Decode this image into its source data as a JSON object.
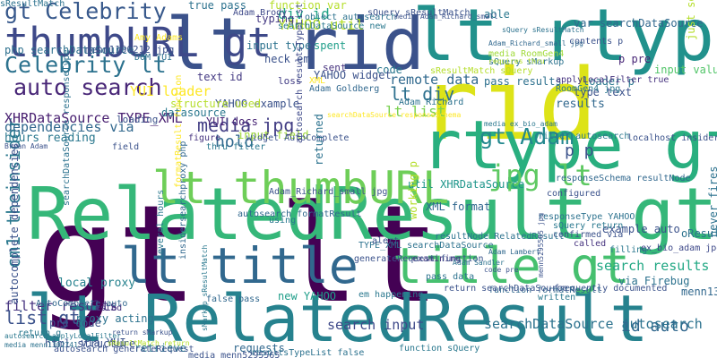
{
  "words": [
    {
      "text": "gt lt",
      "color": "#440154"
    },
    {
      "text": "lt RelatedResult",
      "color": "#26828e"
    },
    {
      "text": "RelatedResult gt",
      "color": "#35b779"
    },
    {
      "text": "rid",
      "color": "#dde318"
    },
    {
      "text": "lt rid",
      "color": "#3b528b"
    },
    {
      "text": "lt rtype",
      "color": "#21918c"
    },
    {
      "text": "rtype gt",
      "color": "#29af7f"
    },
    {
      "text": "lt title",
      "color": "#31688e"
    },
    {
      "text": "title gt",
      "color": "#46c06f"
    },
    {
      "text": "lt thumbURL",
      "color": "#6ece58"
    },
    {
      "text": "thumbURL gt",
      "color": "#3e4989"
    },
    {
      "text": "gt Celebrity",
      "color": "#38598c"
    },
    {
      "text": "Celebrity lt",
      "color": "#2c728e"
    },
    {
      "text": "auto search",
      "color": "#482677"
    },
    {
      "text": "cm1 theinsider",
      "color": "#2a788e"
    },
    {
      "text": "jpg lt",
      "color": "#5ec962"
    },
    {
      "text": "gt Adam",
      "color": "#23888e"
    },
    {
      "text": "media jpg",
      "color": "#433e85"
    },
    {
      "text": "lt div",
      "color": "#2d708e"
    },
    {
      "text": "lt list",
      "color": "#7ad151"
    },
    {
      "text": "remote data",
      "color": "#30698e"
    },
    {
      "text": "p p",
      "color": "#3b528b"
    },
    {
      "text": "div id",
      "color": "#20a386"
    },
    {
      "text": "YAHOO util",
      "color": "#b5de2b"
    },
    {
      "text": "util XHRDataSource",
      "color": "#1f968b"
    },
    {
      "text": "code",
      "color": "#2a788e"
    },
    {
      "text": "hold",
      "color": "#31688e"
    },
    {
      "text": "new YAHOO",
      "color": "#1f9e89"
    },
    {
      "text": "search input",
      "color": "#3e4989"
    },
    {
      "text": "search results",
      "color": "#22a884"
    },
    {
      "text": "id auto",
      "color": "#31688e"
    },
    {
      "text": "searchDataSource autosearch",
      "color": "#2c728e"
    },
    {
      "text": "list gt",
      "color": "#3b528b"
    },
    {
      "text": "filter results",
      "color": "#46337f"
    },
    {
      "text": "local proxy",
      "color": "#26828e"
    },
    {
      "text": "via Firebug",
      "color": "#2c728e"
    },
    {
      "text": "example auto",
      "color": "#3b528b"
    },
    {
      "text": "YUI loader",
      "color": "#fde725"
    },
    {
      "text": "XHRDataSource TYPE_XML",
      "color": "#481f70"
    },
    {
      "text": "hours reading",
      "color": "#2a788e"
    },
    {
      "text": "dependencies via",
      "color": "#31688e"
    },
    {
      "text": "php searchDataSource",
      "color": "#2d708e"
    },
    {
      "text": "YAHOO example",
      "color": "#3b528b"
    },
    {
      "text": "YUI docs",
      "color": "#482475"
    },
    {
      "text": "input field",
      "color": "#a0da39"
    },
    {
      "text": "datasource",
      "color": "#2a788e"
    },
    {
      "text": "structure used",
      "color": "#b5de2b"
    },
    {
      "text": "loading",
      "color": "#3b528b"
    },
    {
      "text": "text id",
      "color": "#443a83"
    },
    {
      "text": "input type",
      "color": "#2c728e"
    },
    {
      "text": "heck em",
      "color": "#3b528b"
    },
    {
      "text": "sent",
      "color": "#46327e"
    },
    {
      "text": "spent",
      "color": "#1f9e89"
    },
    {
      "text": "loss",
      "color": "#433e85"
    },
    {
      "text": "pass results",
      "color": "#2d708e"
    },
    {
      "text": "results",
      "color": "#31688e"
    },
    {
      "text": "type text",
      "color": "#3b528b"
    },
    {
      "text": "loader p",
      "color": "#2a788e"
    },
    {
      "text": "p pre",
      "color": "#482677"
    },
    {
      "text": "input value",
      "color": "#52c569"
    },
    {
      "text": "true pass",
      "color": "#2c728e"
    },
    {
      "text": "function var",
      "color": "#b5de2b"
    },
    {
      "text": "typing",
      "color": "#443983"
    },
    {
      "text": "able",
      "color": "#2a788e"
    },
    {
      "text": "var searchDataSource",
      "color": "#31688e"
    },
    {
      "text": "contents p",
      "color": "#3b528b"
    },
    {
      "text": "media RoomGen4",
      "color": "#a0da39"
    },
    {
      "text": "sQuery sMarkup",
      "color": "#2c728e"
    },
    {
      "text": "applyLocalFilter true",
      "color": "#46337f"
    },
    {
      "text": "RoomGen4 jpg",
      "color": "#2a788e"
    },
    {
      "text": "menn1190212 jpg",
      "color": "#3b528b"
    },
    {
      "text": "DOM YUI",
      "color": "#2d708e"
    },
    {
      "text": "Adam Brody",
      "color": "#3e4989"
    },
    {
      "text": "object autosearch",
      "color": "#2c728e"
    },
    {
      "text": "Amy Adams",
      "color": "#fde725"
    },
    {
      "text": "sQuery sResultMatch",
      "color": "#3b528b"
    },
    {
      "text": "searchDataSource new",
      "color": "#2a788e"
    },
    {
      "text": "sResultMatch sQuery",
      "color": "#b5de2b"
    },
    {
      "text": "YAHOO widget",
      "color": "#3b528b"
    },
    {
      "text": "XML",
      "color": "#fde725"
    },
    {
      "text": "Adam Goldberg",
      "color": "#31688e"
    },
    {
      "text": "Adam Richard",
      "color": "#2c728e"
    },
    {
      "text": "figure",
      "color": "#46337f"
    },
    {
      "text": "widget AutoComplete",
      "color": "#3b528b"
    },
    {
      "text": "thru filter",
      "color": "#2a788e"
    },
    {
      "text": "formatResult function",
      "color": "#fde725"
    },
    {
      "text": "field",
      "color": "#3b528b"
    },
    {
      "text": "returned",
      "color": "#2c728e"
    },
    {
      "text": "just several",
      "color": "#b5de2b"
    },
    {
      "text": "localhost insidersearchproxy",
      "color": "#3b528b"
    },
    {
      "text": "filter autosearch",
      "color": "#2a788e"
    },
    {
      "text": "responseSchema resultNode",
      "color": "#31688e"
    },
    {
      "text": "responseType YAHOO",
      "color": "#2c728e"
    },
    {
      "text": "confirmed via",
      "color": "#3b528b"
    },
    {
      "text": "sQuery return",
      "color": "#2a788e"
    },
    {
      "text": "called",
      "color": "#46337f"
    },
    {
      "text": "configured",
      "color": "#3b528b"
    },
    {
      "text": "oResultData sQuery",
      "color": "#2c728e"
    },
    {
      "text": "filling",
      "color": "#2a788e"
    },
    {
      "text": "ex_bio_adam jpg",
      "color": "#3e4989"
    },
    {
      "text": "menn1302761 jpg",
      "color": "#31688e"
    },
    {
      "text": "never fires",
      "color": "#2c728e"
    },
    {
      "text": "frequently documented",
      "color": "#3b528b"
    },
    {
      "text": "written",
      "color": "#2a788e"
    },
    {
      "text": "function formatResult",
      "color": "#31688e"
    },
    {
      "text": "return searchDataSource",
      "color": "#3b528b"
    },
    {
      "text": "pass data",
      "color": "#2c728e"
    },
    {
      "text": "examining",
      "color": "#46337f"
    },
    {
      "text": "em happening",
      "color": "#2a788e"
    },
    {
      "text": "generateRequest function",
      "color": "#3b528b"
    },
    {
      "text": "XML format",
      "color": "#31688e"
    },
    {
      "text": "working p",
      "color": "#b5de2b"
    },
    {
      "text": "TYPE_XML searchDataSource",
      "color": "#2c728e"
    },
    {
      "text": "alert",
      "color": "#3b528b"
    },
    {
      "text": "using",
      "color": "#2a788e"
    },
    {
      "text": "autosearch formatResult",
      "color": "#31688e"
    },
    {
      "text": "Adam_Richard_small jpg",
      "color": "#3b528b"
    },
    {
      "text": "resultNode RelatedResult",
      "color": "#2c728e"
    },
    {
      "text": "autosearch resultsTypeList",
      "color": "#3e4989"
    },
    {
      "text": "several hours",
      "color": "#2a788e"
    },
    {
      "text": "insidersearchproxy php",
      "color": "#31688e"
    },
    {
      "text": "autocomplete dependencies",
      "color": "#3b528b"
    },
    {
      "text": "searchDataSource responseType",
      "color": "#2c728e"
    },
    {
      "text": "pre code",
      "color": "#3b528b"
    },
    {
      "text": "tested",
      "color": "#46337f"
    },
    {
      "text": "return q",
      "color": "#2a788e"
    },
    {
      "text": "AutoComplete auto",
      "color": "#31688e"
    },
    {
      "text": "via YUI",
      "color": "#3b528b"
    },
    {
      "text": "proxy acting",
      "color": "#2c728e"
    },
    {
      "text": "html structure",
      "color": "#3b528b"
    },
    {
      "text": "retrieve",
      "color": "#2a788e"
    },
    {
      "text": "requests",
      "color": "#31688e"
    },
    {
      "text": "autosearch generateRequest",
      "color": "#3b528b"
    },
    {
      "text": "resultsTypeList false",
      "color": "#2c728e"
    },
    {
      "text": "function sQuery",
      "color": "#2a788e"
    },
    {
      "text": "media menn5295565",
      "color": "#3b528b"
    },
    {
      "text": "false pass",
      "color": "#31688e"
    },
    {
      "text": "media menn1302741",
      "color": "#2c728e"
    },
    {
      "text": "return sMarkup",
      "color": "#3b528b"
    },
    {
      "text": "sResultMatch return",
      "color": "#b5de2b"
    },
    {
      "text": "sMarkup sResultMatch",
      "color": "#2a788e"
    },
    {
      "text": "Bryan Adam",
      "color": "#3b528b"
    },
    {
      "text": "Adam Lambert",
      "color": "#31688e"
    },
    {
      "text": "Adam Sandler",
      "color": "#2c728e"
    },
    {
      "text": "code pre",
      "color": "#3b528b"
    },
    {
      "text": "media ex_bio_adam",
      "color": "#2a788e"
    },
    {
      "text": "Adam_Richard_small jpg",
      "color": "#31688e"
    },
    {
      "text": "sQuery sResultMatch",
      "color": "#2c728e"
    },
    {
      "text": "menn5295565 jpg",
      "color": "#3b528b"
    },
    {
      "text": "autosearch applyLocalFilter",
      "color": "#2a788e"
    },
    {
      "text": "requires thru",
      "color": "#b5de2b"
    },
    {
      "text": "searchDataSource responseSchema",
      "color": "#fde725"
    },
    {
      "text": "media Adam_Richard_small",
      "color": "#3b528b"
    },
    {
      "text": "sResultMatch",
      "color": "#2c728e"
    }
  ]
}
